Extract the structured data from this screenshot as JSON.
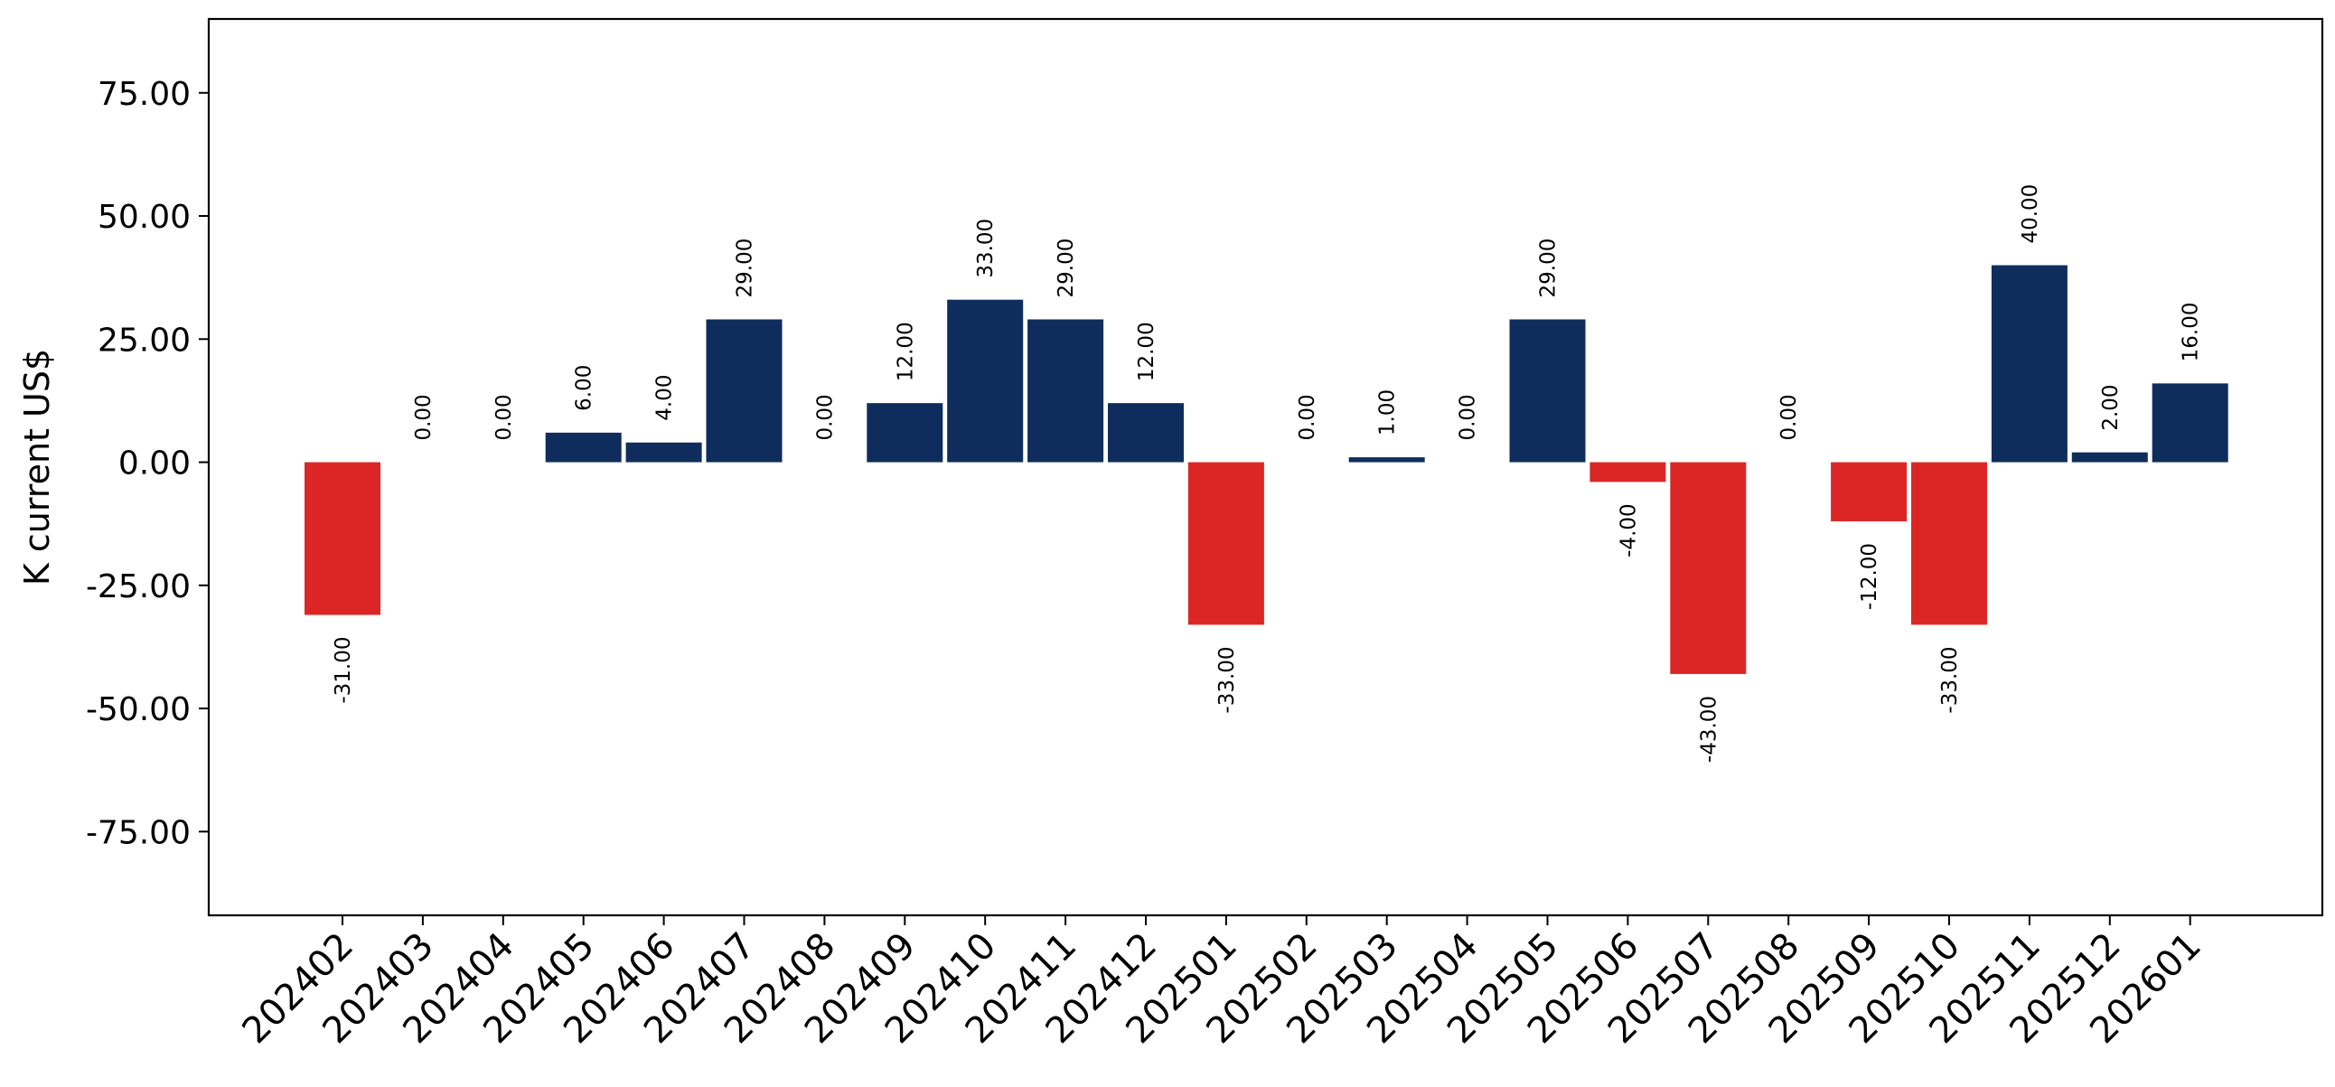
{
  "chart_data": {
    "type": "bar",
    "ylabel": "K current US$",
    "xlabel": "",
    "title": "",
    "ylim": [
      -92,
      90
    ],
    "yticks": [
      -75,
      -50,
      -25,
      0,
      25,
      50,
      75
    ],
    "ytick_labels": [
      "-75.00",
      "-50.00",
      "-25.00",
      "0.00",
      "25.00",
      "50.00",
      "75.00"
    ],
    "categories": [
      "202402",
      "202403",
      "202404",
      "202405",
      "202406",
      "202407",
      "202408",
      "202409",
      "202410",
      "202411",
      "202412",
      "202501",
      "202502",
      "202503",
      "202504",
      "202505",
      "202506",
      "202507",
      "202508",
      "202509",
      "202510",
      "202511",
      "202512",
      "202601"
    ],
    "values": [
      -31,
      0,
      0,
      6,
      4,
      29,
      0,
      12,
      33,
      29,
      12,
      -33,
      0,
      1,
      0,
      29,
      -4,
      -43,
      0,
      -12,
      -33,
      40,
      2,
      16
    ],
    "value_labels": [
      "-31.00",
      "0.00",
      "0.00",
      "6.00",
      "4.00",
      "29.00",
      "0.00",
      "12.00",
      "33.00",
      "29.00",
      "12.00",
      "-33.00",
      "0.00",
      "1.00",
      "0.00",
      "29.00",
      "-4.00",
      "-43.00",
      "0.00",
      "-12.00",
      "-33.00",
      "40.00",
      "2.00",
      "16.00"
    ],
    "colors": {
      "positive": "#0f2d5c",
      "negative": "#dc2626"
    },
    "grid": false,
    "legend": "none"
  }
}
